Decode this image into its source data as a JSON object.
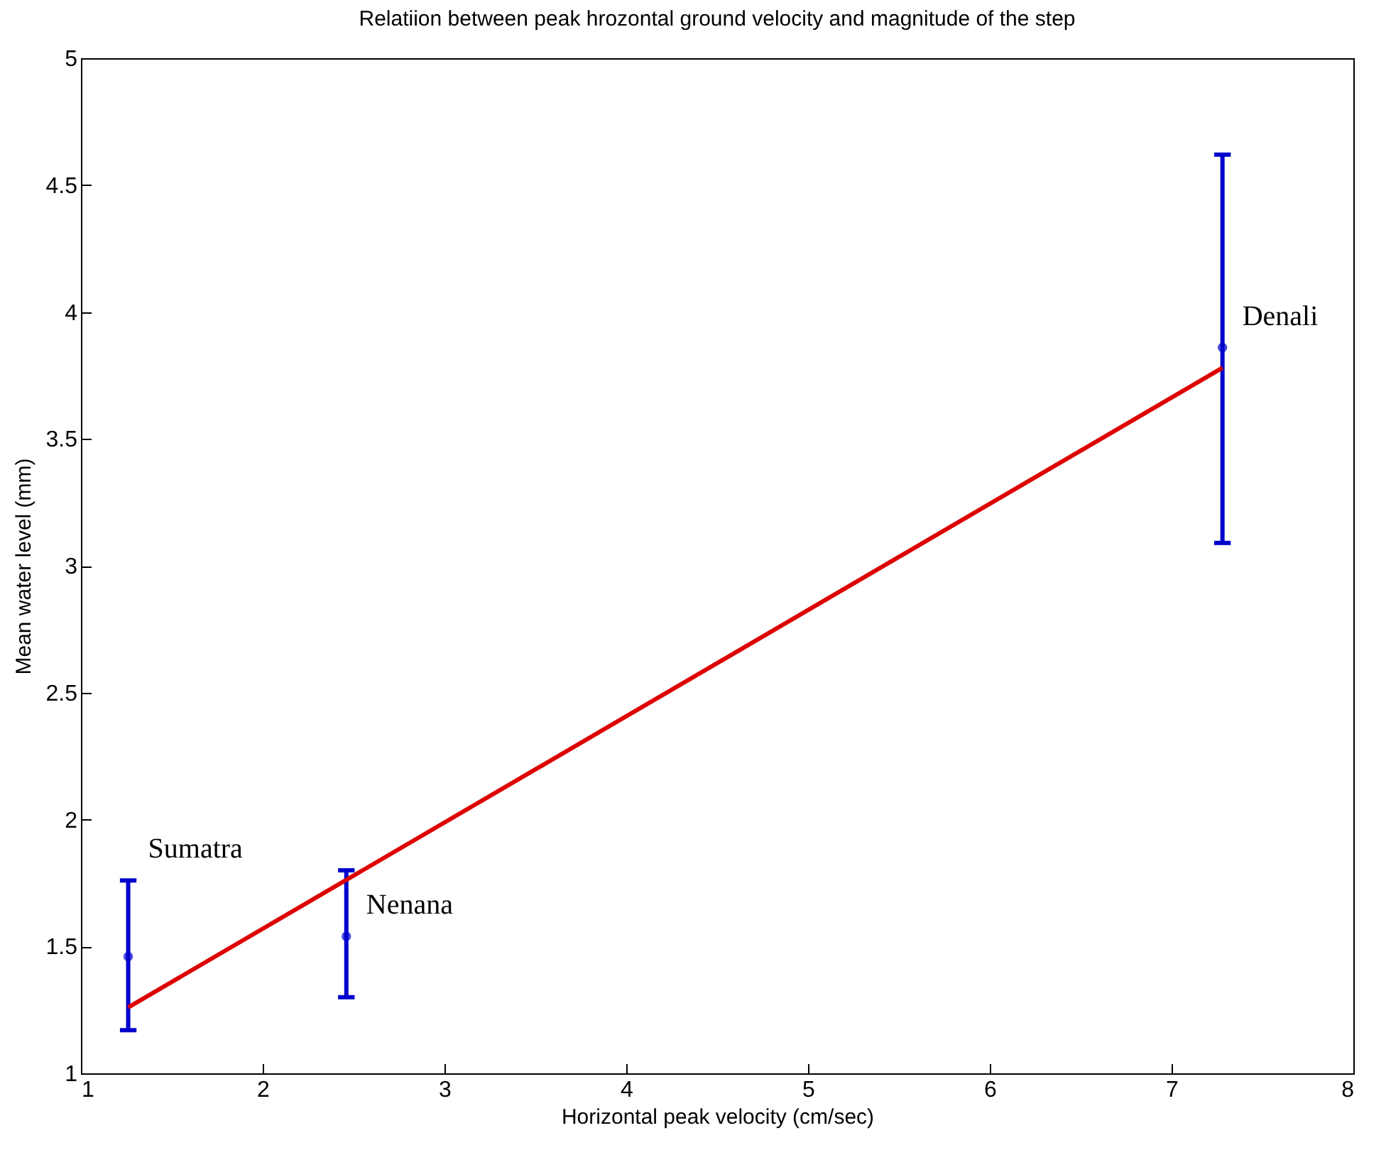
{
  "chart_data": {
    "type": "scatter",
    "title": "Relatiion between peak hrozontal ground velocity and magnitude of the step",
    "xlabel": "Horizontal peak velocity (cm/sec)",
    "ylabel": "Mean water level (mm)",
    "xlim": [
      1,
      8
    ],
    "xticks": [
      1,
      2,
      3,
      4,
      5,
      6,
      7,
      8
    ],
    "ylim": [
      1,
      5
    ],
    "yticks": [
      1,
      1.5,
      2,
      2.5,
      3,
      3.5,
      4,
      4.5,
      5
    ],
    "grid": false,
    "series": [
      {
        "color": "#0000cc",
        "marker": "circle",
        "x": [
          1.26,
          2.46,
          7.28
        ],
        "values": [
          1.46,
          1.54,
          3.86
        ],
        "errors": [
          [
            1.17,
            1.76
          ],
          [
            1.3,
            1.8
          ],
          [
            3.09,
            4.62
          ]
        ]
      },
      {
        "type": "line",
        "color": "#dd0000",
        "x": [
          1.26,
          7.28
        ],
        "values": [
          1.26,
          3.78
        ],
        "line_style": "solid"
      }
    ],
    "annotations": [
      {
        "text": "Sumatra",
        "x": 1.26,
        "y": 1.76
      },
      {
        "text": "Nenana",
        "x": 2.46,
        "y": 1.54
      },
      {
        "text": "Denali",
        "x": 7.28,
        "y": 3.86
      }
    ]
  }
}
